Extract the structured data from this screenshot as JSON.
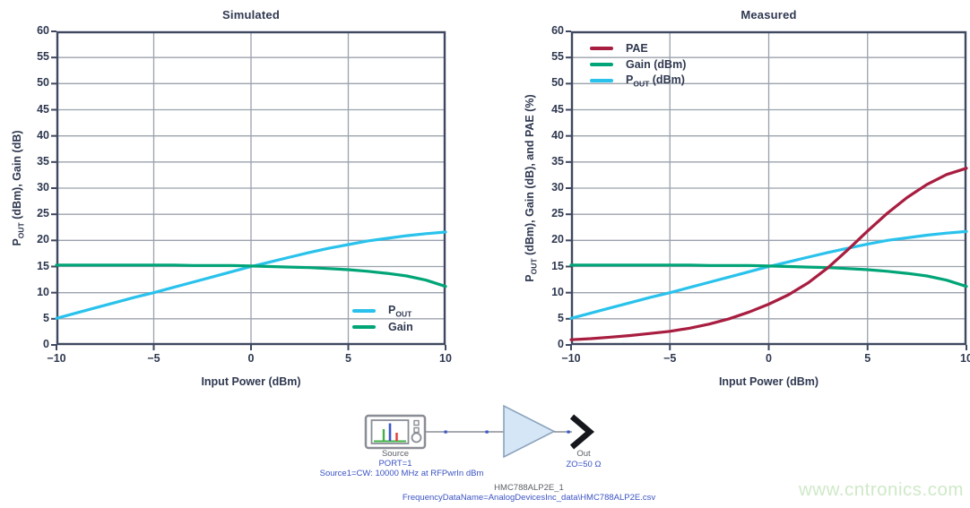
{
  "chart_data": [
    {
      "type": "line",
      "title": "Simulated",
      "xlabel": "Input Power (dBm)",
      "ylabel": "P_OUT (dBm), Gain (dB)",
      "xlim": [
        -10,
        10
      ],
      "ylim": [
        0,
        60
      ],
      "xticks": [
        -10,
        -5,
        0,
        5,
        10
      ],
      "yticks": [
        0,
        5,
        10,
        15,
        20,
        25,
        30,
        35,
        40,
        45,
        50,
        55,
        60
      ],
      "grid": true,
      "legend_position": "bottom-right",
      "x": [
        -10,
        -9,
        -8,
        -7,
        -6,
        -5,
        -4,
        -3,
        -2,
        -1,
        0,
        1,
        2,
        3,
        4,
        5,
        6,
        7,
        8,
        9,
        10
      ],
      "series": [
        {
          "name": "P_OUT",
          "color": "#29c2ec",
          "values": [
            5.1,
            6.1,
            7.1,
            8.1,
            9.1,
            10.0,
            11.0,
            12.0,
            13.0,
            14.0,
            15.0,
            15.9,
            16.8,
            17.7,
            18.5,
            19.2,
            19.9,
            20.4,
            20.9,
            21.3,
            21.6
          ]
        },
        {
          "name": "Gain",
          "color": "#00a577",
          "values": [
            15.3,
            15.3,
            15.3,
            15.3,
            15.3,
            15.3,
            15.3,
            15.2,
            15.2,
            15.2,
            15.1,
            15.0,
            14.9,
            14.8,
            14.6,
            14.4,
            14.1,
            13.7,
            13.2,
            12.4,
            11.2
          ]
        }
      ],
      "legend": [
        {
          "label": "P_OUT",
          "color": "#29c2ec"
        },
        {
          "label": "Gain",
          "color": "#00a577"
        }
      ]
    },
    {
      "type": "line",
      "title": "Measured",
      "xlabel": "Input Power (dBm)",
      "ylabel": "P_OUT (dBm), Gain (dB), and PAE (%)",
      "xlim": [
        -10,
        10
      ],
      "ylim": [
        0,
        60
      ],
      "xticks": [
        -10,
        -5,
        0,
        5,
        10
      ],
      "yticks": [
        0,
        5,
        10,
        15,
        20,
        25,
        30,
        35,
        40,
        45,
        50,
        55,
        60
      ],
      "grid": true,
      "legend_position": "top-left",
      "x": [
        -10,
        -9,
        -8,
        -7,
        -6,
        -5,
        -4,
        -3,
        -2,
        -1,
        0,
        1,
        2,
        3,
        4,
        5,
        6,
        7,
        8,
        9,
        10
      ],
      "series": [
        {
          "name": "P_OUT",
          "color": "#29c2ec",
          "values": [
            5.1,
            6.1,
            7.1,
            8.1,
            9.1,
            10.0,
            11.0,
            12.0,
            13.0,
            14.0,
            15.0,
            15.9,
            16.8,
            17.7,
            18.5,
            19.3,
            20.0,
            20.5,
            21.0,
            21.4,
            21.7
          ]
        },
        {
          "name": "Gain",
          "color": "#00a577",
          "values": [
            15.3,
            15.3,
            15.3,
            15.3,
            15.3,
            15.3,
            15.3,
            15.2,
            15.2,
            15.2,
            15.1,
            15.0,
            14.9,
            14.8,
            14.6,
            14.4,
            14.1,
            13.7,
            13.2,
            12.4,
            11.2
          ]
        },
        {
          "name": "PAE",
          "color": "#a81d40",
          "values": [
            1.0,
            1.2,
            1.5,
            1.8,
            2.2,
            2.6,
            3.2,
            4.0,
            5.0,
            6.3,
            7.8,
            9.6,
            11.9,
            14.8,
            18.2,
            21.8,
            25.2,
            28.2,
            30.7,
            32.6,
            33.8
          ]
        }
      ],
      "legend": [
        {
          "label": "PAE",
          "color": "#a81d40"
        },
        {
          "label": "Gain (dBm)",
          "color": "#00a577"
        },
        {
          "label": "P_OUT (dBm)",
          "color": "#29c2ec"
        }
      ]
    }
  ],
  "schematic": {
    "source_label": "Source",
    "port_label": "PORT=1",
    "source_detail": "Source1=CW: 10000 MHz at RFPwrIn dBm",
    "out_label": "Out",
    "impedance_label": "ZO=50 Ω",
    "component_name": "HMC788ALP2E_1",
    "data_file": "FrequencyDataName=AnalogDevicesInc_data\\HMC788ALP2E.csv",
    "icons": [
      "spectrum-source-icon",
      "amplifier-icon",
      "output-port-icon"
    ]
  },
  "watermark": "www.cntronics.com",
  "colors": {
    "axis_text": "#2f3850",
    "plot_border": "#3f4860",
    "gridline": "#9ba2ad",
    "pout_cyan": "#29c2ec",
    "gain_green": "#00a577",
    "pae_crimson": "#a81d40",
    "schematic_blue": "#3b53c4",
    "schematic_gray": "#898d95",
    "amp_fill": "#d5e6f6",
    "watermark_green": "#cfe9c8"
  }
}
